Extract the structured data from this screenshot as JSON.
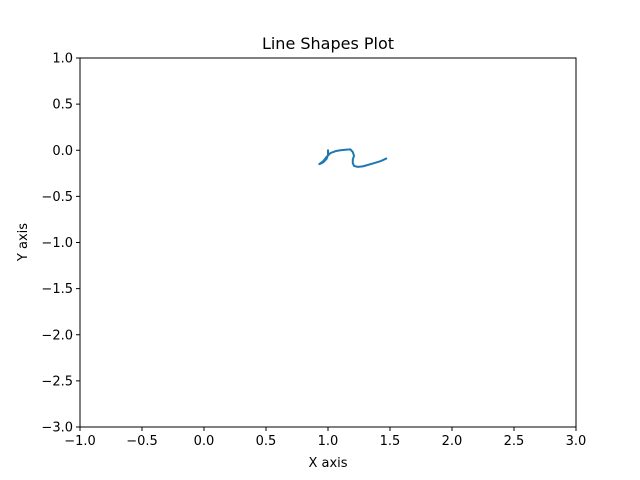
{
  "chart_data": {
    "type": "line",
    "title": "Line Shapes Plot",
    "xlabel": "X axis",
    "ylabel": "Y axis",
    "xlim": [
      -1.0,
      3.0
    ],
    "ylim": [
      -3.0,
      1.0
    ],
    "xticks": [
      -1.0,
      -0.5,
      0.0,
      0.5,
      1.0,
      1.5,
      2.0,
      2.5,
      3.0
    ],
    "xtick_labels": [
      "−1.0",
      "−0.5",
      "0.0",
      "0.5",
      "1.0",
      "1.5",
      "2.0",
      "2.5",
      "3.0"
    ],
    "yticks": [
      1.0,
      0.5,
      0.0,
      -0.5,
      -1.0,
      -1.5,
      -2.0,
      -2.5,
      -3.0
    ],
    "ytick_labels": [
      "1.0",
      "0.5",
      "0.0",
      "−0.5",
      "−1.0",
      "−1.5",
      "−2.0",
      "−2.5",
      "−3.0"
    ],
    "grid": false,
    "series": [
      {
        "color": "#1f77b4",
        "x": [
          1.0,
          1.0,
          0.99,
          0.97,
          0.95,
          0.93,
          0.96,
          0.99,
          1.02,
          1.06,
          1.1,
          1.14,
          1.18,
          1.2,
          1.21,
          1.2,
          1.2,
          1.21,
          1.24,
          1.28,
          1.32,
          1.37,
          1.42,
          1.47
        ],
        "y": [
          0.0,
          -0.05,
          -0.09,
          -0.12,
          -0.14,
          -0.15,
          -0.12,
          -0.07,
          -0.03,
          -0.01,
          0.0,
          0.005,
          0.01,
          -0.02,
          -0.06,
          -0.1,
          -0.14,
          -0.17,
          -0.18,
          -0.175,
          -0.16,
          -0.14,
          -0.12,
          -0.09
        ]
      }
    ]
  }
}
